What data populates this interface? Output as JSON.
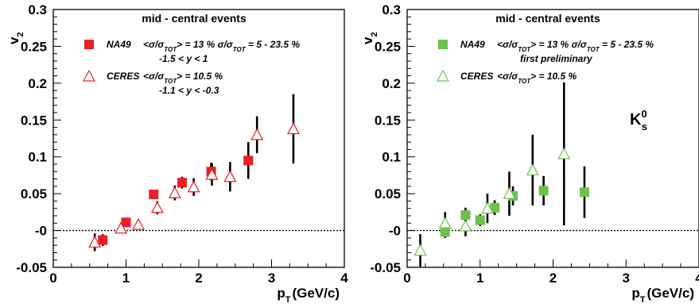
{
  "chart_data": [
    {
      "type": "scatter",
      "title": "mid - central events",
      "xlabel": "pT (GeV/c)",
      "ylabel": "v2",
      "xlim": [
        0,
        4
      ],
      "ylim": [
        -0.05,
        0.3
      ],
      "x_ticks": [
        "0",
        "1",
        "2",
        "3",
        "4"
      ],
      "y_ticks": [
        "-0.05",
        "-0",
        "0.05",
        "0.1",
        "0.15",
        "0.2",
        "0.25",
        "0.3"
      ],
      "zero_line": "dotted",
      "legend": [
        {
          "series": "NA49",
          "marker": "filled-square",
          "color": "#ee1c25",
          "line1": "<σ/σTOT> = 13 %  σ/σTOT = 5 - 23.5 %",
          "line2": "-1.5 < y < 1"
        },
        {
          "series": "CERES",
          "marker": "open-triangle",
          "color": "#ee1c25",
          "line1": "<σ/σTOT> = 10.5 %",
          "line2": "-1.1 < y < -0.3"
        }
      ],
      "series": [
        {
          "name": "NA49",
          "marker": "filled-square",
          "color": "#ee1c25",
          "points": [
            {
              "x": 0.68,
              "y": -0.013,
              "err": 0.008
            },
            {
              "x": 1.0,
              "y": 0.011,
              "err": 0.005
            },
            {
              "x": 1.38,
              "y": 0.049,
              "err": 0.006
            },
            {
              "x": 1.77,
              "y": 0.065,
              "err": 0.008
            },
            {
              "x": 2.17,
              "y": 0.08,
              "err": 0.012
            },
            {
              "x": 2.68,
              "y": 0.095,
              "err": 0.025
            }
          ]
        },
        {
          "name": "CERES",
          "marker": "open-triangle",
          "color": "#ee1c25",
          "points": [
            {
              "x": 0.57,
              "y": -0.016,
              "err": 0.012
            },
            {
              "x": 0.93,
              "y": 0.003,
              "err": 0.006
            },
            {
              "x": 1.17,
              "y": 0.008,
              "err": 0.006
            },
            {
              "x": 1.43,
              "y": 0.031,
              "err": 0.009
            },
            {
              "x": 1.67,
              "y": 0.051,
              "err": 0.01
            },
            {
              "x": 1.93,
              "y": 0.059,
              "err": 0.012
            },
            {
              "x": 2.18,
              "y": 0.076,
              "err": 0.015
            },
            {
              "x": 2.43,
              "y": 0.073,
              "err": 0.02
            },
            {
              "x": 2.8,
              "y": 0.13,
              "err": 0.025
            },
            {
              "x": 3.3,
              "y": 0.138,
              "err": 0.047
            }
          ]
        }
      ]
    },
    {
      "type": "scatter",
      "title": "mid - central events",
      "xlabel": "pT (GeV/c)",
      "ylabel": "v2",
      "particle_label": "K0s",
      "xlim": [
        0,
        4
      ],
      "ylim": [
        -0.05,
        0.3
      ],
      "x_ticks": [
        "0",
        "1",
        "2",
        "3",
        "4"
      ],
      "y_ticks": [
        "-0.05",
        "-0",
        "0.05",
        "0.1",
        "0.15",
        "0.2",
        "0.25",
        "0.3"
      ],
      "zero_line": "dotted",
      "legend": [
        {
          "series": "NA49",
          "marker": "filled-square",
          "color": "#6cc24a",
          "line1": "<σ/σTOT> = 13 %  σ/σTOT = 5 - 23.5 %",
          "line2": "first preliminary"
        },
        {
          "series": "CERES",
          "marker": "open-triangle",
          "color": "#6cc24a",
          "line1": "<σ/σTOT> = 10.5 %",
          "line2": ""
        }
      ],
      "series": [
        {
          "name": "NA49",
          "marker": "filled-square",
          "color": "#6cc24a",
          "points": [
            {
              "x": 0.52,
              "y": -0.002,
              "err": 0.008
            },
            {
              "x": 0.8,
              "y": 0.021,
              "err": 0.01
            },
            {
              "x": 1.0,
              "y": 0.014,
              "err": 0.008
            },
            {
              "x": 1.2,
              "y": 0.031,
              "err": 0.01
            },
            {
              "x": 1.45,
              "y": 0.047,
              "err": 0.013
            },
            {
              "x": 1.87,
              "y": 0.054,
              "err": 0.02
            },
            {
              "x": 2.43,
              "y": 0.052,
              "err": 0.035
            }
          ]
        },
        {
          "name": "CERES",
          "marker": "open-triangle",
          "color": "#6cc24a",
          "points": [
            {
              "x": 0.18,
              "y": -0.027,
              "err": 0.022
            },
            {
              "x": 0.52,
              "y": 0.01,
              "err": 0.015
            },
            {
              "x": 0.8,
              "y": 0.006,
              "err": 0.014
            },
            {
              "x": 1.1,
              "y": 0.03,
              "err": 0.02
            },
            {
              "x": 1.4,
              "y": 0.05,
              "err": 0.03
            },
            {
              "x": 1.72,
              "y": 0.082,
              "err": 0.048
            },
            {
              "x": 2.15,
              "y": 0.104,
              "err": 0.097
            }
          ]
        }
      ]
    }
  ]
}
